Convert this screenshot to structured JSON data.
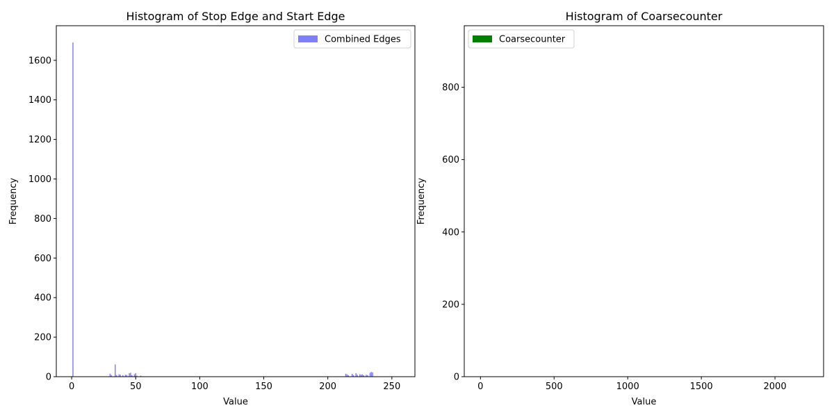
{
  "chart_data": [
    {
      "type": "bar",
      "title": "Histogram of Stop Edge and Start Edge",
      "xlabel": "Value",
      "ylabel": "Frequency",
      "xlim": [
        -12,
        268
      ],
      "ylim": [
        0,
        1775
      ],
      "xticks": [
        0,
        50,
        100,
        150,
        200,
        250
      ],
      "yticks": [
        0,
        200,
        400,
        600,
        800,
        1000,
        1200,
        1400,
        1600
      ],
      "legend": "top-right",
      "grid": false,
      "series": [
        {
          "name": "Combined Edges",
          "color": "#7f7ff5",
          "bin_width": 0.8,
          "bins": [
            [
              1,
              1690
            ],
            [
              30,
              15
            ],
            [
              31,
              8
            ],
            [
              34,
              62
            ],
            [
              35,
              8
            ],
            [
              37,
              12
            ],
            [
              38,
              10
            ],
            [
              40,
              8
            ],
            [
              42,
              10
            ],
            [
              43,
              8
            ],
            [
              45,
              18
            ],
            [
              46,
              20
            ],
            [
              47,
              8
            ],
            [
              49,
              12
            ],
            [
              50,
              18
            ],
            [
              51,
              5
            ],
            [
              54,
              5
            ],
            [
              214,
              15
            ],
            [
              215,
              12
            ],
            [
              216,
              8
            ],
            [
              219,
              14
            ],
            [
              220,
              8
            ],
            [
              222,
              18
            ],
            [
              223,
              10
            ],
            [
              225,
              12
            ],
            [
              226,
              10
            ],
            [
              227,
              12
            ],
            [
              228,
              8
            ],
            [
              230,
              10
            ],
            [
              231,
              8
            ],
            [
              233,
              20
            ],
            [
              234,
              24
            ],
            [
              235,
              22
            ]
          ]
        }
      ]
    },
    {
      "type": "bar",
      "title": "Histogram of Coarsecounter",
      "xlabel": "Value",
      "ylabel": "Frequency",
      "xlim": [
        -110,
        2330
      ],
      "ylim": [
        0,
        970
      ],
      "xticks": [
        0,
        500,
        1000,
        1500,
        2000
      ],
      "yticks": [
        0,
        200,
        400,
        600,
        800
      ],
      "legend": "top-left",
      "grid": false,
      "series": [
        {
          "name": "Coarsecounter",
          "color": "#008000",
          "bins": []
        }
      ]
    }
  ]
}
